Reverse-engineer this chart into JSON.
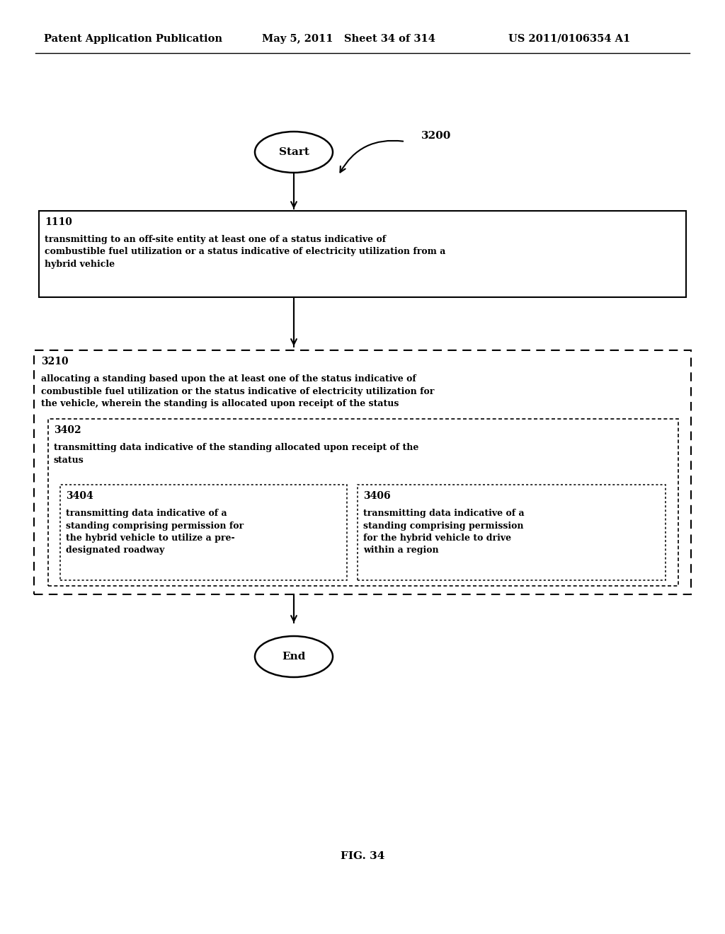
{
  "bg_color": "#ffffff",
  "header_left": "Patent Application Publication",
  "header_mid": "May 5, 2011   Sheet 34 of 314",
  "header_right": "US 2011/0106354 A1",
  "fig_label": "FIG. 34",
  "diagram_label": "3200",
  "start_label": "Start",
  "end_label": "End",
  "box1110_id": "1110",
  "box1110_text": "transmitting to an off-site entity at least one of a status indicative of\ncombustible fuel utilization or a status indicative of electricity utilization from a\nhybrid vehicle",
  "box3210_id": "3210",
  "box3210_text": "allocating a standing based upon the at least one of the status indicative of\ncombustible fuel utilization or the status indicative of electricity utilization for\nthe vehicle, wherein the standing is allocated upon receipt of the status",
  "box3402_id": "3402",
  "box3402_text": "transmitting data indicative of the standing allocated upon receipt of the\nstatus",
  "box3404_id": "3404",
  "box3404_text": "transmitting data indicative of a\nstanding comprising permission for\nthe hybrid vehicle to utilize a pre-\ndesignated roadway",
  "box3406_id": "3406",
  "box3406_text": "transmitting data indicative of a\nstanding comprising permission\nfor the hybrid vehicle to drive\nwithin a region"
}
